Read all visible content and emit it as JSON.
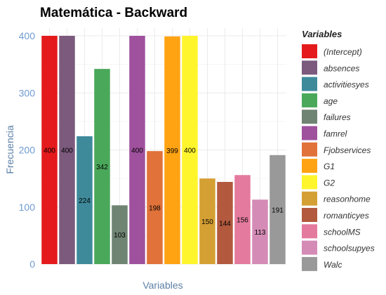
{
  "chart_data": {
    "type": "bar",
    "title": "Matemática - Backward",
    "xlabel": "Variables",
    "ylabel": "Frecuencia",
    "ylim": [
      0,
      400
    ],
    "yticks": [
      0,
      100,
      200,
      300,
      400
    ],
    "grid": true,
    "legend_title": "Variables",
    "legend_position": "right",
    "categories": [
      "(Intercept)",
      "absences",
      "activitiesyes",
      "age",
      "failures",
      "famrel",
      "Fjobservices",
      "G1",
      "G2",
      "reasonhome",
      "romanticyes",
      "schoolMS",
      "schoolsupyes",
      "Walc"
    ],
    "values": [
      400,
      400,
      224,
      342,
      103,
      400,
      198,
      399,
      400,
      150,
      144,
      156,
      113,
      191
    ],
    "colors": [
      "#e41a1c",
      "#7b5a7e",
      "#3e8a9b",
      "#4aa85a",
      "#6f8472",
      "#9f519d",
      "#e1723a",
      "#ffa313",
      "#fff52d",
      "#d5a033",
      "#b2593e",
      "#e47a9e",
      "#d48cb6",
      "#999999"
    ]
  }
}
